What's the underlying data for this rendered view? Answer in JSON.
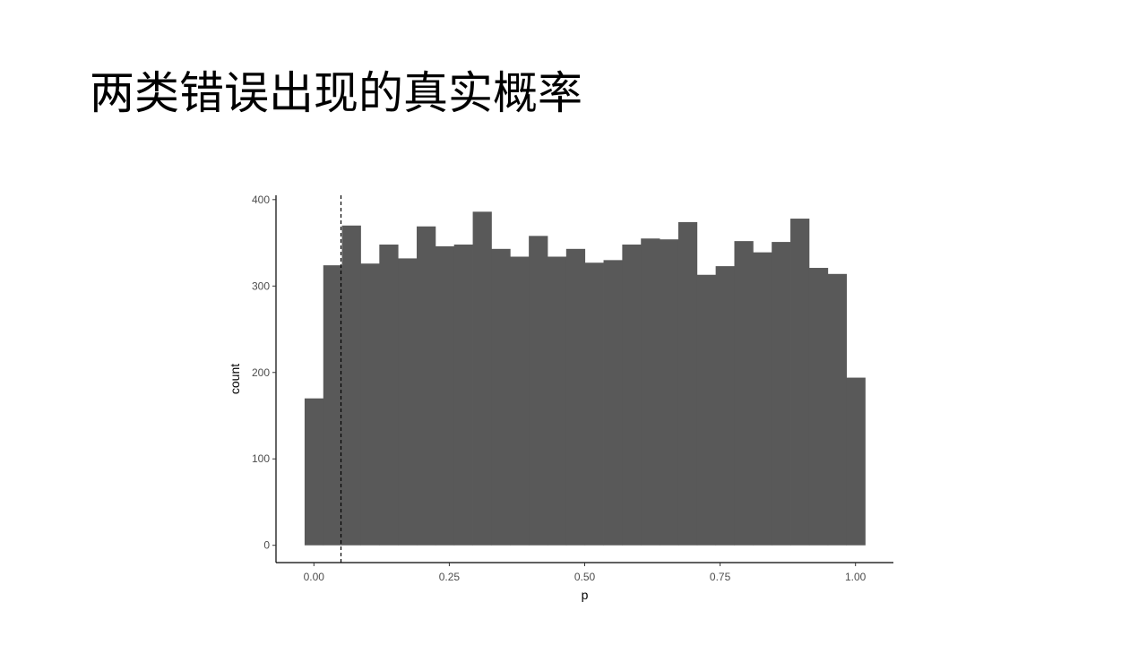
{
  "slide": {
    "title": "两类错误出现的真实概率"
  },
  "chart_data": {
    "type": "bar",
    "title": "",
    "xlabel": "p",
    "ylabel": "count",
    "xlim": [
      -0.07,
      1.07
    ],
    "ylim": [
      -20,
      405
    ],
    "x_ticks": [
      0.0,
      0.25,
      0.5,
      0.75,
      1.0
    ],
    "x_tick_labels": [
      "0.00",
      "0.25",
      "0.50",
      "0.75",
      "1.00"
    ],
    "y_ticks": [
      0,
      100,
      200,
      300,
      400
    ],
    "y_tick_labels": [
      "0",
      "100",
      "200",
      "300",
      "400"
    ],
    "bin_width": 0.0345,
    "bin_start": -0.0172,
    "values": [
      170,
      324,
      370,
      326,
      348,
      332,
      369,
      346,
      348,
      386,
      343,
      334,
      358,
      334,
      343,
      327,
      330,
      348,
      355,
      354,
      374,
      313,
      323,
      352,
      339,
      351,
      378,
      321,
      314,
      194
    ],
    "bar_color": "#595959",
    "reference_line": {
      "x": 0.05,
      "style": "dashed"
    },
    "grid": false,
    "legend": "none"
  }
}
